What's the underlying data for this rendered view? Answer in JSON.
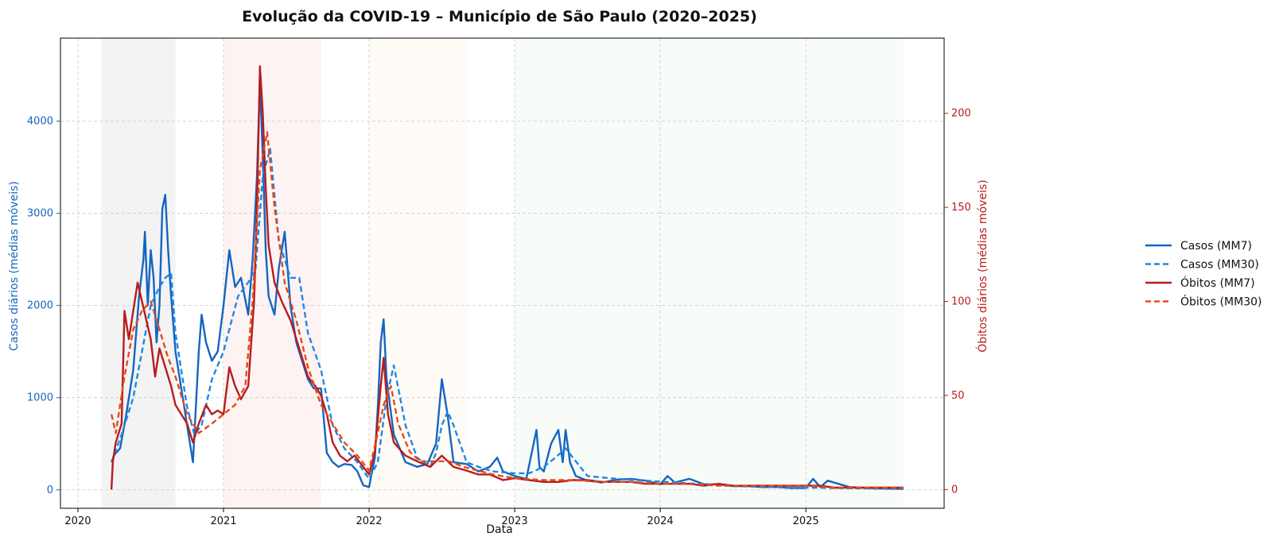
{
  "chart_data": {
    "type": "line",
    "title": "Evolução da COVID-19 – Município de São Paulo (2020–2025)",
    "xlabel": "Data",
    "ylabel_left": "Casos diários (médias móveis)",
    "ylabel_right": "Óbitos diários (médias móveis)",
    "xlim": [
      2019.88,
      2025.95
    ],
    "ylim_left": [
      -200,
      4900
    ],
    "ylim_right": [
      -10,
      240
    ],
    "x_ticks": [
      "2020",
      "2021",
      "2022",
      "2023",
      "2024",
      "2025"
    ],
    "y_ticks_left": [
      0,
      1000,
      2000,
      3000,
      4000
    ],
    "y_ticks_right": [
      0,
      50,
      100,
      150,
      200
    ],
    "grid": true,
    "legend_position": "right",
    "colors": {
      "casos_mm7": "#1565c0",
      "casos_mm30": "#1e88e5",
      "obitos_mm7": "#b71c1c",
      "obitos_mm30": "#e64a19",
      "left_axis": "#1565c0",
      "right_axis": "#b71c1c"
    },
    "shaded_periods": [
      {
        "start": 2020.16,
        "end": 2020.67,
        "color": "#9e9e9e"
      },
      {
        "start": 2021.0,
        "end": 2021.67,
        "color": "#ef9a9a"
      },
      {
        "start": 2022.0,
        "end": 2022.67,
        "color": "#ffe0b2"
      },
      {
        "start": 2023.0,
        "end": 2025.67,
        "color": "#c8e6c9"
      }
    ],
    "series": [
      {
        "name": "Casos (MM7)",
        "axis": "left",
        "style": "solid",
        "x": [
          2020.23,
          2020.25,
          2020.29,
          2020.33,
          2020.38,
          2020.42,
          2020.45,
          2020.46,
          2020.48,
          2020.5,
          2020.52,
          2020.54,
          2020.56,
          2020.58,
          2020.6,
          2020.62,
          2020.64,
          2020.67,
          2020.71,
          2020.75,
          2020.79,
          2020.83,
          2020.85,
          2020.88,
          2020.92,
          2020.96,
          2021.0,
          2021.04,
          2021.08,
          2021.12,
          2021.17,
          2021.2,
          2021.23,
          2021.25,
          2021.27,
          2021.29,
          2021.31,
          2021.35,
          2021.38,
          2021.42,
          2021.46,
          2021.5,
          2021.54,
          2021.58,
          2021.62,
          2021.67,
          2021.71,
          2021.75,
          2021.79,
          2021.83,
          2021.88,
          2021.92,
          2021.96,
          2022.0,
          2022.04,
          2022.06,
          2022.08,
          2022.1,
          2022.12,
          2022.17,
          2022.21,
          2022.25,
          2022.33,
          2022.4,
          2022.46,
          2022.5,
          2022.54,
          2022.58,
          2022.67,
          2022.75,
          2022.83,
          2022.88,
          2022.92,
          2023.0,
          2023.08,
          2023.15,
          2023.17,
          2023.2,
          2023.25,
          2023.3,
          2023.33,
          2023.35,
          2023.38,
          2023.42,
          2023.5,
          2023.6,
          2023.7,
          2023.8,
          2023.9,
          2024.0,
          2024.05,
          2024.1,
          2024.2,
          2024.3,
          2024.4,
          2024.5,
          2024.6,
          2024.7,
          2024.8,
          2024.9,
          2025.0,
          2025.05,
          2025.1,
          2025.15,
          2025.3,
          2025.5,
          2025.67
        ],
        "y": [
          300,
          380,
          450,
          800,
          1300,
          2100,
          2500,
          2800,
          2000,
          2600,
          2300,
          1600,
          2000,
          3050,
          3200,
          2600,
          2100,
          1500,
          1100,
          700,
          300,
          1500,
          1900,
          1600,
          1400,
          1500,
          2000,
          2600,
          2200,
          2300,
          1900,
          2500,
          3400,
          4450,
          3600,
          2600,
          2100,
          1900,
          2400,
          2800,
          2000,
          1600,
          1400,
          1200,
          1100,
          1100,
          400,
          300,
          250,
          280,
          270,
          200,
          50,
          30,
          350,
          900,
          1600,
          1850,
          1200,
          600,
          450,
          300,
          250,
          280,
          500,
          1200,
          800,
          300,
          280,
          200,
          250,
          350,
          200,
          150,
          120,
          650,
          250,
          200,
          500,
          650,
          300,
          650,
          300,
          150,
          100,
          80,
          110,
          120,
          100,
          60,
          150,
          80,
          120,
          60,
          60,
          40,
          40,
          30,
          30,
          20,
          20,
          120,
          30,
          100,
          30,
          15,
          10
        ]
      },
      {
        "name": "Casos (MM30)",
        "axis": "left",
        "style": "dashed",
        "x": [
          2020.23,
          2020.3,
          2020.38,
          2020.44,
          2020.5,
          2020.56,
          2020.6,
          2020.64,
          2020.67,
          2020.71,
          2020.75,
          2020.8,
          2020.85,
          2020.92,
          2021.0,
          2021.05,
          2021.1,
          2021.17,
          2021.22,
          2021.27,
          2021.32,
          2021.38,
          2021.46,
          2021.52,
          2021.58,
          2021.67,
          2021.75,
          2021.83,
          2021.92,
          2022.0,
          2022.06,
          2022.12,
          2022.17,
          2022.25,
          2022.33,
          2022.42,
          2022.46,
          2022.5,
          2022.54,
          2022.58,
          2022.67,
          2022.75,
          2022.85,
          2023.0,
          2023.1,
          2023.2,
          2023.28,
          2023.35,
          2023.4,
          2023.5,
          2023.7,
          2023.9,
          2024.1,
          2024.3,
          2024.5,
          2024.8,
          2025.0,
          2025.2,
          2025.4,
          2025.67
        ],
        "y": [
          300,
          600,
          1000,
          1500,
          2000,
          2200,
          2300,
          2350,
          1700,
          1300,
          900,
          600,
          700,
          1200,
          1500,
          1800,
          2100,
          2250,
          2400,
          3400,
          3700,
          2700,
          2300,
          2300,
          1700,
          1300,
          700,
          450,
          300,
          120,
          300,
          1000,
          1350,
          700,
          350,
          250,
          400,
          700,
          850,
          700,
          300,
          250,
          200,
          180,
          180,
          250,
          350,
          450,
          350,
          150,
          120,
          100,
          80,
          60,
          40,
          30,
          25,
          20,
          15,
          10
        ]
      },
      {
        "name": "Óbitos (MM7)",
        "axis": "right",
        "style": "solid",
        "x": [
          2020.23,
          2020.24,
          2020.26,
          2020.3,
          2020.32,
          2020.35,
          2020.38,
          2020.41,
          2020.44,
          2020.47,
          2020.5,
          2020.53,
          2020.56,
          2020.6,
          2020.64,
          2020.67,
          2020.71,
          2020.75,
          2020.79,
          2020.83,
          2020.88,
          2020.92,
          2020.96,
          2021.0,
          2021.04,
          2021.08,
          2021.12,
          2021.17,
          2021.21,
          2021.23,
          2021.25,
          2021.27,
          2021.29,
          2021.31,
          2021.35,
          2021.4,
          2021.46,
          2021.52,
          2021.58,
          2021.63,
          2021.67,
          2021.71,
          2021.75,
          2021.8,
          2021.85,
          2021.9,
          2021.96,
          2022.0,
          2022.04,
          2022.08,
          2022.1,
          2022.13,
          2022.17,
          2022.25,
          2022.33,
          2022.42,
          2022.5,
          2022.58,
          2022.67,
          2022.75,
          2022.83,
          2022.92,
          2023.0,
          2023.1,
          2023.2,
          2023.3,
          2023.4,
          2023.5,
          2023.6,
          2023.7,
          2023.8,
          2023.9,
          2024.0,
          2024.1,
          2024.2,
          2024.3,
          2024.4,
          2024.5,
          2024.6,
          2024.7,
          2024.8,
          2024.9,
          2025.0,
          2025.1,
          2025.2,
          2025.3,
          2025.5,
          2025.67
        ],
        "y": [
          0,
          15,
          25,
          35,
          95,
          80,
          95,
          110,
          100,
          90,
          80,
          60,
          75,
          65,
          55,
          45,
          40,
          35,
          25,
          35,
          45,
          40,
          42,
          40,
          65,
          55,
          48,
          55,
          100,
          150,
          225,
          200,
          160,
          130,
          110,
          100,
          90,
          75,
          60,
          55,
          50,
          40,
          25,
          18,
          15,
          18,
          12,
          8,
          20,
          55,
          70,
          40,
          25,
          18,
          15,
          12,
          18,
          12,
          10,
          8,
          8,
          5,
          6,
          5,
          4,
          4,
          5,
          5,
          4,
          4,
          4,
          3,
          3,
          3,
          3,
          2,
          3,
          2,
          2,
          2,
          2,
          2,
          2,
          2,
          1,
          1,
          1,
          1
        ]
      },
      {
        "name": "Óbitos (MM30)",
        "axis": "right",
        "style": "dashed",
        "x": [
          2020.23,
          2020.26,
          2020.32,
          2020.38,
          2020.44,
          2020.5,
          2020.56,
          2020.62,
          2020.67,
          2020.75,
          2020.83,
          2020.92,
          2021.0,
          2021.08,
          2021.15,
          2021.2,
          2021.25,
          2021.3,
          2021.35,
          2021.42,
          2021.5,
          2021.58,
          2021.67,
          2021.75,
          2021.83,
          2021.92,
          2022.0,
          2022.06,
          2022.1,
          2022.15,
          2022.2,
          2022.28,
          2022.35,
          2022.45,
          2022.55,
          2022.65,
          2022.75,
          2022.85,
          2023.0,
          2023.2,
          2023.4,
          2023.6,
          2023.8,
          2024.0,
          2024.2,
          2024.4,
          2024.6,
          2024.8,
          2025.0,
          2025.2,
          2025.4,
          2025.67
        ],
        "y": [
          40,
          30,
          60,
          85,
          95,
          100,
          85,
          70,
          60,
          40,
          30,
          35,
          40,
          45,
          55,
          100,
          170,
          190,
          150,
          110,
          90,
          65,
          45,
          35,
          25,
          18,
          10,
          30,
          45,
          55,
          35,
          20,
          15,
          15,
          15,
          12,
          10,
          8,
          6,
          5,
          5,
          4,
          4,
          3,
          3,
          2,
          2,
          2,
          2,
          1,
          1,
          1
        ]
      }
    ]
  }
}
